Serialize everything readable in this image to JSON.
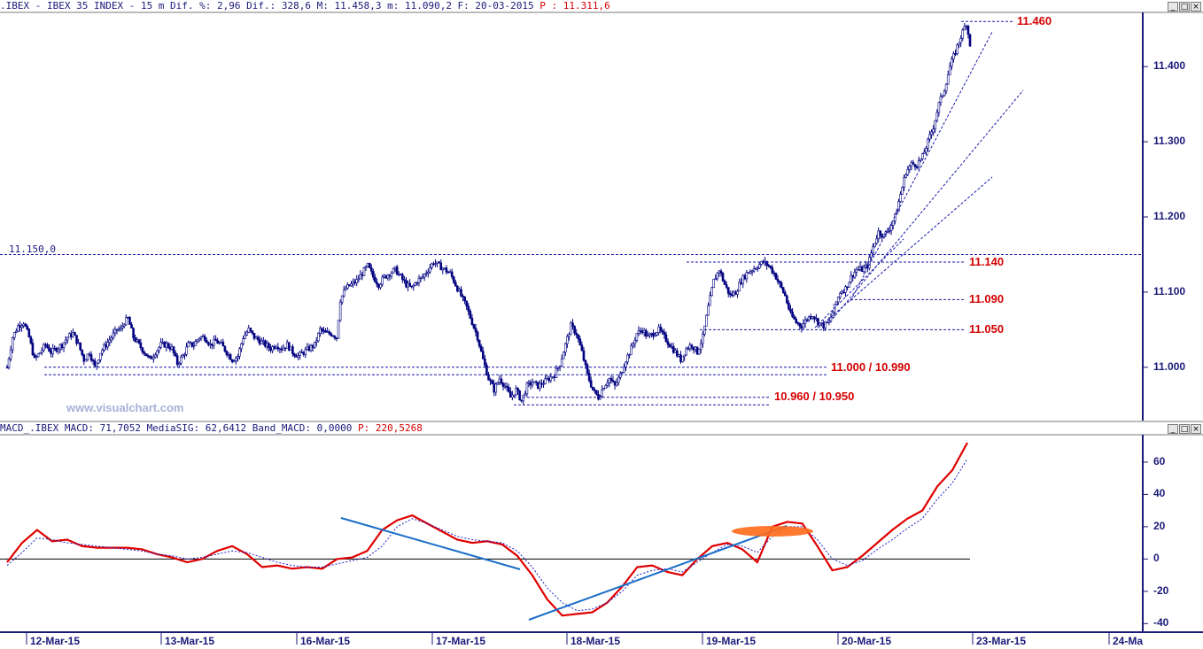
{
  "price_header": {
    "text": ".IBEX - IBEX 35 INDEX -  15 m Dif. %: 2,96 Dif.: 328,6 M: 11.458,3 m: 11.090,2 F: 20-03-2015",
    "p_text": "P : 11.311,6"
  },
  "macd_header": {
    "text": "MACD_.IBEX MACD: 71,7052 MediaSIG: 62,6412 Band_MACD: 0,0000",
    "p_text": "P: 220,5268"
  },
  "watermark": "www.visualchart.com",
  "window_buttons": [
    "_",
    "□",
    "×"
  ],
  "colors": {
    "axis": "#1a1a7a",
    "level_text": "#d40000",
    "dashed_line": "#1a1aa8",
    "macd_line": "#e00000",
    "signal_line": "#2020c8",
    "trend_line": "#1a6ec8",
    "highlight": "#ff6a1a"
  },
  "chart_data": [
    {
      "type": "candlestick",
      "symbol": "IBEX 35 INDEX",
      "interval": "15 m",
      "y_ticks": [
        "11.000",
        "11.100",
        "11.200",
        "11.300",
        "11.400"
      ],
      "y_tick_values": [
        11000,
        11100,
        11200,
        11300,
        11400
      ],
      "ylim": [
        10935,
        11465
      ],
      "x_labels": [
        "12-Mar-15",
        "13-Mar-15",
        "16-Mar-15",
        "17-Mar-15",
        "18-Mar-15",
        "19-Mar-15",
        "20-Mar-15",
        "23-Mar-15",
        "24-Ma"
      ],
      "close_path": [
        [
          0,
          11000
        ],
        [
          3,
          11040
        ],
        [
          6,
          11055
        ],
        [
          9,
          11060
        ],
        [
          12,
          11040
        ],
        [
          15,
          11010
        ],
        [
          18,
          11020
        ],
        [
          21,
          11030
        ],
        [
          24,
          11020
        ],
        [
          27,
          11025
        ],
        [
          30,
          11030
        ],
        [
          33,
          11040
        ],
        [
          36,
          11045
        ],
        [
          39,
          11030
        ],
        [
          42,
          11010
        ],
        [
          45,
          11020
        ],
        [
          48,
          11000
        ],
        [
          51,
          11020
        ],
        [
          54,
          11030
        ],
        [
          57,
          11040
        ],
        [
          60,
          11050
        ],
        [
          62,
          11050
        ],
        [
          64,
          11060
        ],
        [
          66,
          11065
        ],
        [
          69,
          11040
        ],
        [
          72,
          11030
        ],
        [
          75,
          11020
        ],
        [
          78,
          11010
        ],
        [
          81,
          11020
        ],
        [
          84,
          11030
        ],
        [
          87,
          11030
        ],
        [
          90,
          11025
        ],
        [
          93,
          11005
        ],
        [
          96,
          11015
        ],
        [
          99,
          11030
        ],
        [
          102,
          11030
        ],
        [
          105,
          11040
        ],
        [
          108,
          11040
        ],
        [
          111,
          11030
        ],
        [
          114,
          11035
        ],
        [
          117,
          11030
        ],
        [
          120,
          11020
        ],
        [
          123,
          11010
        ],
        [
          126,
          11015
        ],
        [
          129,
          11040
        ],
        [
          132,
          11050
        ],
        [
          135,
          11040
        ],
        [
          138,
          11035
        ],
        [
          141,
          11030
        ],
        [
          144,
          11025
        ],
        [
          147,
          11030
        ],
        [
          150,
          11025
        ],
        [
          153,
          11030
        ],
        [
          156,
          11020
        ],
        [
          159,
          11015
        ],
        [
          162,
          11020
        ],
        [
          165,
          11025
        ],
        [
          168,
          11030
        ],
        [
          171,
          11050
        ],
        [
          174,
          11045
        ],
        [
          177,
          11045
        ],
        [
          180,
          11040
        ],
        [
          182,
          11090
        ],
        [
          185,
          11105
        ],
        [
          188,
          11110
        ],
        [
          191,
          11115
        ],
        [
          194,
          11125
        ],
        [
          197,
          11135
        ],
        [
          200,
          11120
        ],
        [
          203,
          11110
        ],
        [
          206,
          11120
        ],
        [
          209,
          11125
        ],
        [
          212,
          11130
        ],
        [
          215,
          11120
        ],
        [
          218,
          11110
        ],
        [
          221,
          11105
        ],
        [
          224,
          11115
        ],
        [
          227,
          11120
        ],
        [
          230,
          11130
        ],
        [
          233,
          11140
        ],
        [
          236,
          11135
        ],
        [
          239,
          11130
        ],
        [
          242,
          11125
        ],
        [
          245,
          11110
        ],
        [
          248,
          11095
        ],
        [
          251,
          11080
        ],
        [
          254,
          11060
        ],
        [
          257,
          11040
        ],
        [
          260,
          11010
        ],
        [
          263,
          10985
        ],
        [
          266,
          10970
        ],
        [
          269,
          10985
        ],
        [
          272,
          10975
        ],
        [
          275,
          10960
        ],
        [
          278,
          10970
        ],
        [
          281,
          10955
        ],
        [
          284,
          10975
        ],
        [
          287,
          10980
        ],
        [
          290,
          10975
        ],
        [
          293,
          10980
        ],
        [
          296,
          10985
        ],
        [
          299,
          10990
        ],
        [
          302,
          11005
        ],
        [
          305,
          11030
        ],
        [
          308,
          11055
        ],
        [
          311,
          11045
        ],
        [
          314,
          11020
        ],
        [
          317,
          10990
        ],
        [
          320,
          10970
        ],
        [
          323,
          10960
        ],
        [
          326,
          10975
        ],
        [
          329,
          10985
        ],
        [
          332,
          10975
        ],
        [
          335,
          10990
        ],
        [
          338,
          11010
        ],
        [
          341,
          11025
        ],
        [
          344,
          11045
        ],
        [
          347,
          11050
        ],
        [
          350,
          11040
        ],
        [
          353,
          11045
        ],
        [
          356,
          11050
        ],
        [
          359,
          11040
        ],
        [
          362,
          11030
        ],
        [
          365,
          11020
        ],
        [
          368,
          11010
        ],
        [
          371,
          11025
        ],
        [
          374,
          11030
        ],
        [
          377,
          11020
        ],
        [
          380,
          11040
        ],
        [
          383,
          11080
        ],
        [
          386,
          11115
        ],
        [
          389,
          11130
        ],
        [
          392,
          11110
        ],
        [
          395,
          11095
        ],
        [
          398,
          11100
        ],
        [
          401,
          11115
        ],
        [
          404,
          11125
        ],
        [
          407,
          11130
        ],
        [
          410,
          11135
        ],
        [
          413,
          11140
        ],
        [
          416,
          11135
        ],
        [
          419,
          11125
        ],
        [
          422,
          11110
        ],
        [
          425,
          11095
        ],
        [
          428,
          11070
        ],
        [
          431,
          11060
        ],
        [
          434,
          11055
        ],
        [
          437,
          11065
        ],
        [
          440,
          11070
        ],
        [
          443,
          11060
        ],
        [
          446,
          11055
        ],
        [
          449,
          11060
        ],
        [
          452,
          11080
        ],
        [
          455,
          11100
        ],
        [
          458,
          11105
        ],
        [
          461,
          11120
        ],
        [
          464,
          11130
        ],
        [
          467,
          11130
        ],
        [
          470,
          11135
        ],
        [
          473,
          11160
        ],
        [
          476,
          11180
        ],
        [
          479,
          11175
        ],
        [
          482,
          11185
        ],
        [
          485,
          11200
        ],
        [
          488,
          11230
        ],
        [
          491,
          11260
        ],
        [
          494,
          11270
        ],
        [
          497,
          11270
        ],
        [
          500,
          11280
        ],
        [
          503,
          11300
        ],
        [
          506,
          11320
        ],
        [
          509,
          11350
        ],
        [
          512,
          11370
        ],
        [
          515,
          11400
        ],
        [
          518,
          11420
        ],
        [
          521,
          11440
        ],
        [
          524,
          11458
        ],
        [
          526,
          11430
        ]
      ],
      "levels": [
        {
          "value": 11150,
          "label": "11.150,0",
          "style": "plain"
        },
        {
          "value": 11460,
          "label": "11.460"
        },
        {
          "value": 11140,
          "label": "11.140"
        },
        {
          "value": 11090,
          "label": "11.090"
        },
        {
          "value": 11050,
          "label": "11.050"
        },
        {
          "value": 11000,
          "label": "11.000 / 10.990"
        },
        {
          "value": 10960,
          "label": "10.960 / 10.950"
        }
      ]
    },
    {
      "type": "line",
      "name": "MACD",
      "y_ticks": [
        "-40",
        "-20",
        "0",
        "20",
        "40",
        "60"
      ],
      "y_tick_values": [
        -40,
        -20,
        0,
        20,
        40,
        60
      ],
      "ylim": [
        -42,
        72
      ],
      "series": [
        {
          "values": [
            [
              0,
              -2
            ],
            [
              10,
              10
            ],
            [
              20,
              18
            ],
            [
              30,
              11
            ],
            [
              40,
              12
            ],
            [
              50,
              8
            ],
            [
              60,
              7
            ],
            [
              70,
              7
            ],
            [
              80,
              7
            ],
            [
              90,
              6
            ],
            [
              100,
              3
            ],
            [
              110,
              1
            ],
            [
              120,
              -2
            ],
            [
              130,
              0
            ],
            [
              140,
              5
            ],
            [
              150,
              8
            ],
            [
              160,
              3
            ],
            [
              170,
              -5
            ],
            [
              180,
              -4
            ],
            [
              190,
              -6
            ],
            [
              200,
              -5
            ],
            [
              210,
              -6
            ],
            [
              220,
              0
            ],
            [
              230,
              1
            ],
            [
              240,
              5
            ],
            [
              250,
              18
            ],
            [
              260,
              24
            ],
            [
              270,
              27
            ],
            [
              280,
              22
            ],
            [
              290,
              17
            ],
            [
              300,
              12
            ],
            [
              310,
              10
            ],
            [
              320,
              11
            ],
            [
              330,
              9
            ],
            [
              340,
              2
            ],
            [
              350,
              -10
            ],
            [
              360,
              -25
            ],
            [
              370,
              -35
            ],
            [
              380,
              -34
            ],
            [
              390,
              -33
            ],
            [
              400,
              -27
            ],
            [
              410,
              -17
            ],
            [
              420,
              -5
            ],
            [
              430,
              -4
            ],
            [
              440,
              -8
            ],
            [
              450,
              -10
            ],
            [
              460,
              0
            ],
            [
              470,
              8
            ],
            [
              480,
              10
            ],
            [
              490,
              6
            ],
            [
              500,
              -2
            ],
            [
              510,
              20
            ],
            [
              520,
              23
            ],
            [
              530,
              22
            ],
            [
              540,
              8
            ],
            [
              550,
              -7
            ],
            [
              560,
              -5
            ],
            [
              570,
              2
            ],
            [
              580,
              10
            ],
            [
              590,
              18
            ],
            [
              600,
              25
            ],
            [
              610,
              30
            ],
            [
              620,
              45
            ],
            [
              630,
              55
            ],
            [
              640,
              72
            ]
          ]
        },
        {
          "values": [
            [
              0,
              -4
            ],
            [
              10,
              4
            ],
            [
              20,
              13
            ],
            [
              30,
              12
            ],
            [
              40,
              10
            ],
            [
              50,
              9
            ],
            [
              60,
              8
            ],
            [
              70,
              7
            ],
            [
              80,
              6
            ],
            [
              90,
              5
            ],
            [
              100,
              3
            ],
            [
              110,
              2
            ],
            [
              120,
              0
            ],
            [
              130,
              1
            ],
            [
              140,
              3
            ],
            [
              150,
              5
            ],
            [
              160,
              4
            ],
            [
              170,
              1
            ],
            [
              180,
              -2
            ],
            [
              190,
              -4
            ],
            [
              200,
              -5
            ],
            [
              210,
              -5
            ],
            [
              220,
              -3
            ],
            [
              230,
              -1
            ],
            [
              240,
              1
            ],
            [
              250,
              8
            ],
            [
              260,
              20
            ],
            [
              270,
              25
            ],
            [
              280,
              22
            ],
            [
              290,
              18
            ],
            [
              300,
              14
            ],
            [
              310,
              12
            ],
            [
              320,
              11
            ],
            [
              330,
              10
            ],
            [
              340,
              5
            ],
            [
              350,
              -5
            ],
            [
              360,
              -18
            ],
            [
              370,
              -27
            ],
            [
              380,
              -32
            ],
            [
              390,
              -31
            ],
            [
              400,
              -27
            ],
            [
              410,
              -20
            ],
            [
              420,
              -10
            ],
            [
              430,
              -7
            ],
            [
              440,
              -6
            ],
            [
              450,
              -8
            ],
            [
              460,
              -2
            ],
            [
              470,
              4
            ],
            [
              480,
              9
            ],
            [
              490,
              8
            ],
            [
              500,
              4
            ],
            [
              510,
              14
            ],
            [
              520,
              20
            ],
            [
              530,
              20
            ],
            [
              540,
              12
            ],
            [
              550,
              0
            ],
            [
              560,
              -4
            ],
            [
              570,
              -1
            ],
            [
              580,
              6
            ],
            [
              590,
              12
            ],
            [
              600,
              19
            ],
            [
              610,
              25
            ],
            [
              620,
              37
            ],
            [
              630,
              47
            ],
            [
              640,
              62
            ]
          ]
        }
      ]
    }
  ]
}
